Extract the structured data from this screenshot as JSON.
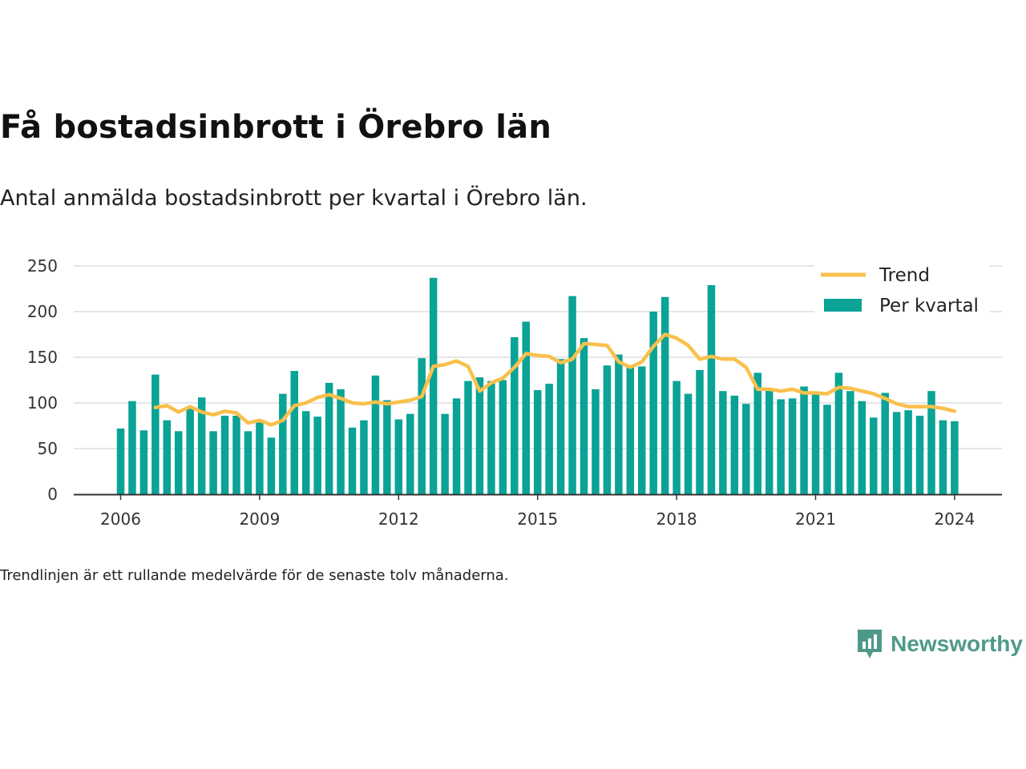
{
  "title": "Få bostadsinbrott i Örebro län",
  "subtitle": "Antal anmälda bostadsinbrott per kvartal i Örebro län.",
  "footnote": "Trendlinjen är ett rullande medelvärde för de senaste tolv månaderna.",
  "brand": {
    "name": "Newsworthy",
    "icon": "newsworthy-logo-icon"
  },
  "colors": {
    "bars": "#0aa396",
    "trend": "#f9c04c",
    "grid": "#dddddd",
    "axis": "#333333"
  },
  "chart_data": {
    "type": "bar",
    "x_start_year": 2006,
    "periods_per_year": 4,
    "xticks": [
      "2006",
      "2009",
      "2012",
      "2015",
      "2018",
      "2021",
      "2024"
    ],
    "yticks": [
      "0",
      "50",
      "100",
      "150",
      "200",
      "250"
    ],
    "ylim": [
      0,
      250
    ],
    "grid": true,
    "legend_position": "top-right",
    "series": [
      {
        "name": "Per kvartal",
        "type": "bar",
        "values": [
          72,
          102,
          70,
          131,
          81,
          69,
          95,
          106,
          69,
          86,
          86,
          69,
          80,
          62,
          110,
          135,
          91,
          85,
          122,
          115,
          73,
          81,
          130,
          103,
          82,
          88,
          149,
          237,
          88,
          105,
          124,
          128,
          124,
          125,
          172,
          189,
          114,
          121,
          148,
          217,
          171,
          115,
          141,
          153,
          140,
          140,
          200,
          216,
          124,
          110,
          136,
          229,
          113,
          108,
          99,
          133,
          115,
          104,
          105,
          118,
          110,
          98,
          133,
          113,
          102,
          84,
          111,
          90,
          92,
          86,
          113,
          81,
          80
        ]
      },
      {
        "name": "Trend",
        "type": "line",
        "start_index": 3,
        "values": [
          95,
          97,
          90,
          96,
          90,
          87,
          91,
          89,
          78,
          81,
          76,
          81,
          97,
          100,
          106,
          109,
          105,
          100,
          99,
          101,
          99,
          101,
          103,
          107,
          140,
          142,
          146,
          140,
          113,
          122,
          127,
          139,
          154,
          152,
          151,
          144,
          148,
          165,
          164,
          163,
          145,
          139,
          145,
          162,
          175,
          171,
          163,
          148,
          151,
          148,
          148,
          139,
          115,
          115,
          113,
          115,
          111,
          111,
          110,
          117,
          116,
          113,
          110,
          105,
          99,
          96,
          96,
          96,
          94,
          91
        ]
      }
    ]
  }
}
